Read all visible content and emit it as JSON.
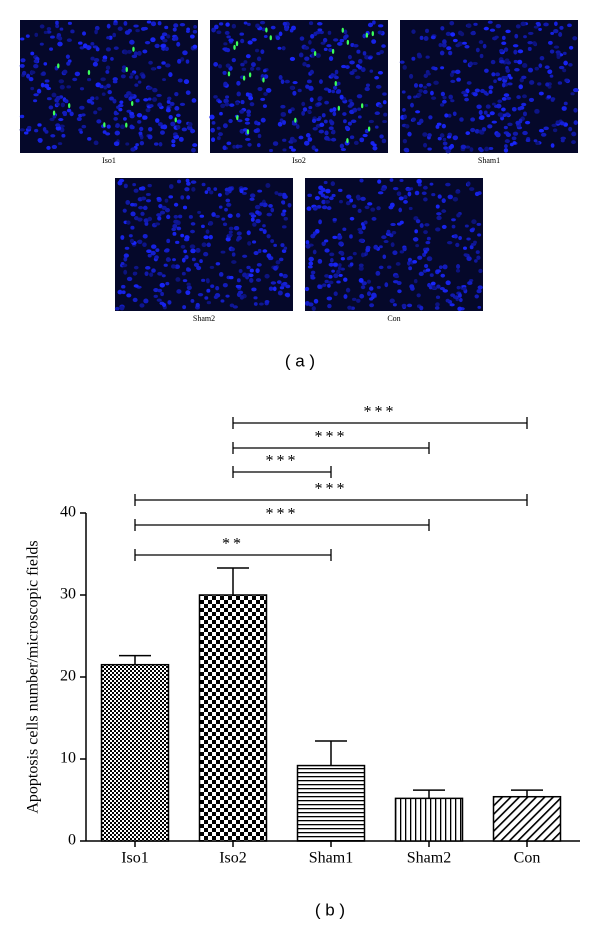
{
  "images": [
    {
      "label": "Iso1"
    },
    {
      "label": "Iso2"
    },
    {
      "label": "Sham1"
    },
    {
      "label": "Sham2"
    },
    {
      "label": "Con"
    }
  ],
  "panel_a_label": "( a )",
  "panel_b_label": "( b )",
  "chart_data": {
    "type": "bar",
    "ylabel": "Apoptosis cells number/microscopic fields",
    "categories": [
      "Iso1",
      "Iso2",
      "Sham1",
      "Sham2",
      "Con"
    ],
    "values": [
      21.5,
      30,
      9.2,
      5.2,
      5.4
    ],
    "errors": [
      1.1,
      3.3,
      3,
      1,
      0.8
    ],
    "ylim": [
      0,
      40
    ],
    "yticks": [
      0,
      10,
      20,
      30,
      40
    ],
    "comparisons": [
      {
        "from": 1,
        "to": 4,
        "label": "***"
      },
      {
        "from": 1,
        "to": 3,
        "label": "***"
      },
      {
        "from": 1,
        "to": 2,
        "label": "***"
      },
      {
        "from": 0,
        "to": 4,
        "label": "***"
      },
      {
        "from": 0,
        "to": 3,
        "label": "***"
      },
      {
        "from": 0,
        "to": 2,
        "label": "**"
      }
    ]
  }
}
